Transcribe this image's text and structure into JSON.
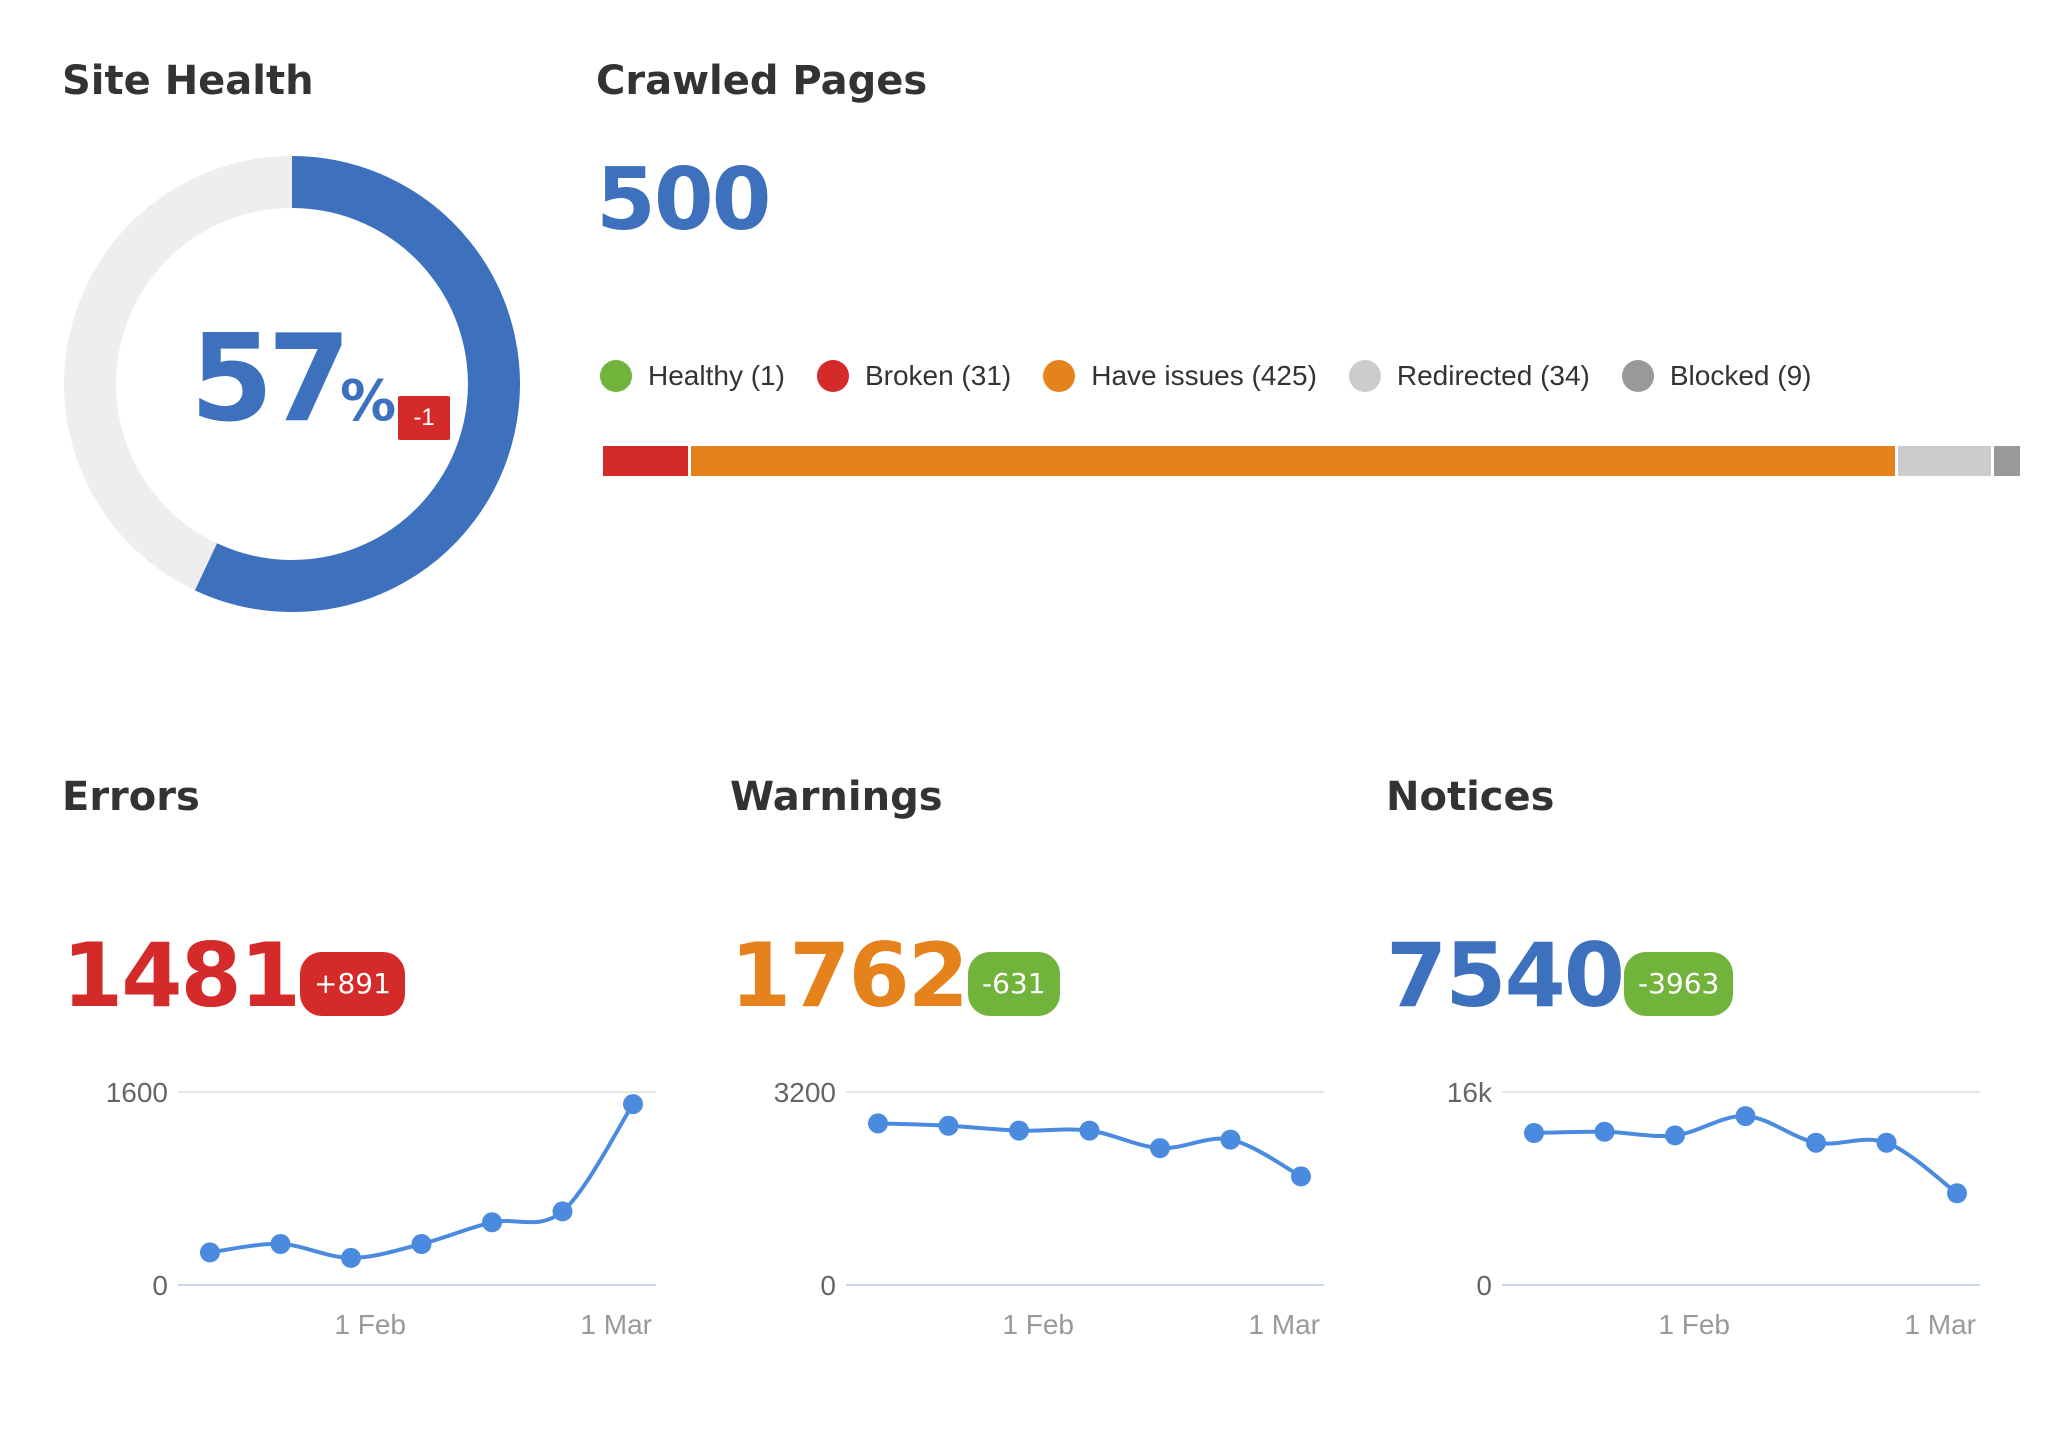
{
  "site_health": {
    "title": "Site Health",
    "value": "57",
    "unit": "%",
    "change": "-1",
    "fraction": 0.57,
    "colors": {
      "fill": "#3d71bd",
      "track": "#eeeeee",
      "badge": "#d52a2a"
    }
  },
  "crawled_pages": {
    "title": "Crawled Pages",
    "total": "500",
    "legend": [
      {
        "label": "Healthy (1)",
        "count": 1,
        "color": "#72b33c"
      },
      {
        "label": "Broken (31)",
        "count": 31,
        "color": "#d52a2a"
      },
      {
        "label": "Have issues (425)",
        "count": 425,
        "color": "#e5821c"
      },
      {
        "label": "Redirected (34)",
        "count": 34,
        "color": "#cccccc"
      },
      {
        "label": "Blocked (9)",
        "count": 9,
        "color": "#999999"
      }
    ]
  },
  "cards": [
    {
      "title": "Errors",
      "value": "1481",
      "value_color": "#d52a2a",
      "change": "+891",
      "badge_color": "#d52a2a"
    },
    {
      "title": "Warnings",
      "value": "1762",
      "value_color": "#e5821c",
      "change": "-631",
      "badge_color": "#72b33c"
    },
    {
      "title": "Notices",
      "value": "7540",
      "value_color": "#3d71bd",
      "change": "-3963",
      "badge_color": "#72b33c"
    }
  ],
  "chart_data": [
    {
      "type": "line",
      "title": "Errors",
      "x_tick_labels": [
        "1 Feb",
        "1 Mar"
      ],
      "y_tick_labels": [
        "0",
        "1600"
      ],
      "ylim": [
        0,
        1600
      ],
      "series": [
        {
          "values": [
            270,
            340,
            225,
            340,
            520,
            610,
            1500
          ],
          "color": "#4a8be0"
        }
      ],
      "grid": true
    },
    {
      "type": "line",
      "title": "Warnings",
      "x_tick_labels": [
        "1 Feb",
        "1 Mar"
      ],
      "y_tick_labels": [
        "0",
        "3200"
      ],
      "ylim": [
        0,
        3200
      ],
      "series": [
        {
          "values": [
            2680,
            2640,
            2560,
            2560,
            2270,
            2410,
            1800
          ],
          "color": "#4a8be0"
        }
      ],
      "grid": true
    },
    {
      "type": "line",
      "title": "Notices",
      "x_tick_labels": [
        "1 Feb",
        "1 Mar"
      ],
      "y_tick_labels": [
        "0",
        "16k"
      ],
      "ylim": [
        0,
        16000
      ],
      "series": [
        {
          "values": [
            12600,
            12700,
            12400,
            14000,
            11800,
            11800,
            7600
          ],
          "color": "#4a8be0"
        }
      ],
      "grid": true
    }
  ]
}
